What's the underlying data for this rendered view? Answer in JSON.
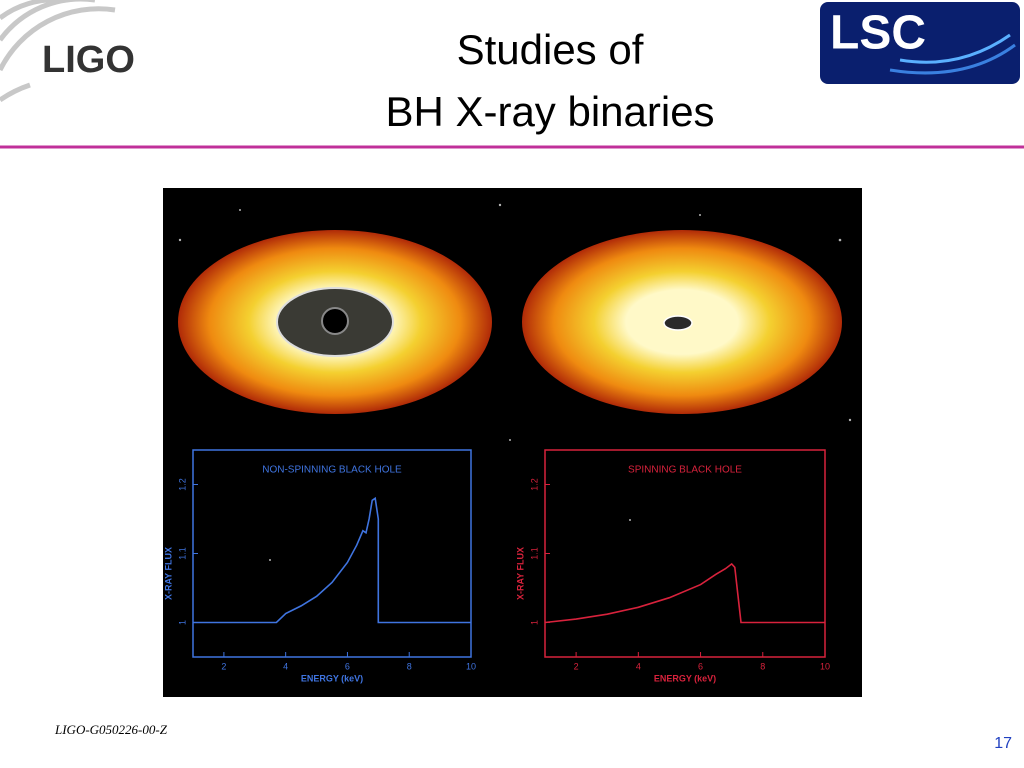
{
  "slide": {
    "ligo_logo": "LIGO",
    "lsc_logo": "LSC",
    "title_line1": "Studies of",
    "title_line2": "BH X-ray binaries",
    "footer": "LIGO-G050226-00-Z",
    "page_number": "17"
  },
  "chart_data": [
    {
      "type": "line",
      "title": "NON-SPINNING BLACK HOLE",
      "x_label": "ENERGY (keV)",
      "y_label": "X-RAY FLUX",
      "xlim": [
        1,
        10
      ],
      "ylim": [
        0.95,
        1.25
      ],
      "xticks": [
        2,
        4,
        6,
        8,
        10
      ],
      "yticks": [
        1,
        1.1,
        1.2
      ],
      "series": [
        {
          "color": "#3f74e0",
          "x": [
            1,
            2,
            3,
            3.7,
            4,
            4.5,
            5,
            5.5,
            6,
            6.3,
            6.5,
            6.6,
            6.7,
            6.8,
            6.9,
            7.0,
            7.0,
            8,
            9,
            10
          ],
          "values": [
            1,
            1,
            1,
            1,
            1.013,
            1.024,
            1.038,
            1.058,
            1.087,
            1.112,
            1.133,
            1.13,
            1.15,
            1.177,
            1.18,
            1.15,
            1,
            1,
            1,
            1
          ]
        }
      ]
    },
    {
      "type": "line",
      "title": "SPINNING BLACK HOLE",
      "x_label": "ENERGY (keV)",
      "y_label": "X-RAY FLUX",
      "xlim": [
        1,
        10
      ],
      "ylim": [
        0.95,
        1.25
      ],
      "xticks": [
        2,
        4,
        6,
        8,
        10
      ],
      "yticks": [
        1,
        1.1,
        1.2
      ],
      "series": [
        {
          "color": "#d8223c",
          "x": [
            1,
            2,
            3,
            4,
            5,
            6,
            6.5,
            6.8,
            7,
            7.1,
            7.2,
            7.3,
            8,
            9,
            10
          ],
          "values": [
            1,
            1.005,
            1.012,
            1.022,
            1.036,
            1.055,
            1.07,
            1.078,
            1.085,
            1.08,
            1.04,
            1,
            1,
            1,
            1
          ]
        }
      ]
    }
  ]
}
